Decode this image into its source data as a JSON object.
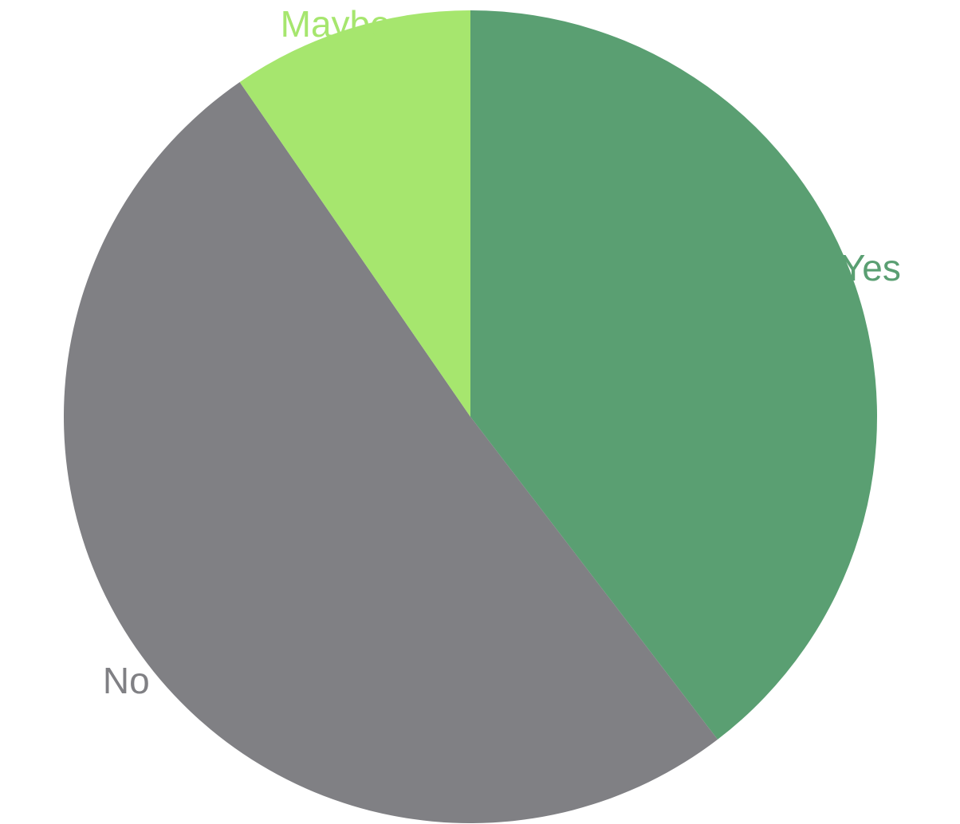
{
  "chart_data": {
    "type": "pie",
    "title": "",
    "slices": [
      {
        "label": "Yes",
        "value": 39.6,
        "color": "#5a9f72"
      },
      {
        "label": "No",
        "value": 50.8,
        "color": "#808084"
      },
      {
        "label": "Maybe",
        "value": 9.6,
        "color": "#a6e66e"
      }
    ],
    "start_angle_deg": 0,
    "direction": "clockwise",
    "labels_outside": true,
    "legend": "none"
  }
}
